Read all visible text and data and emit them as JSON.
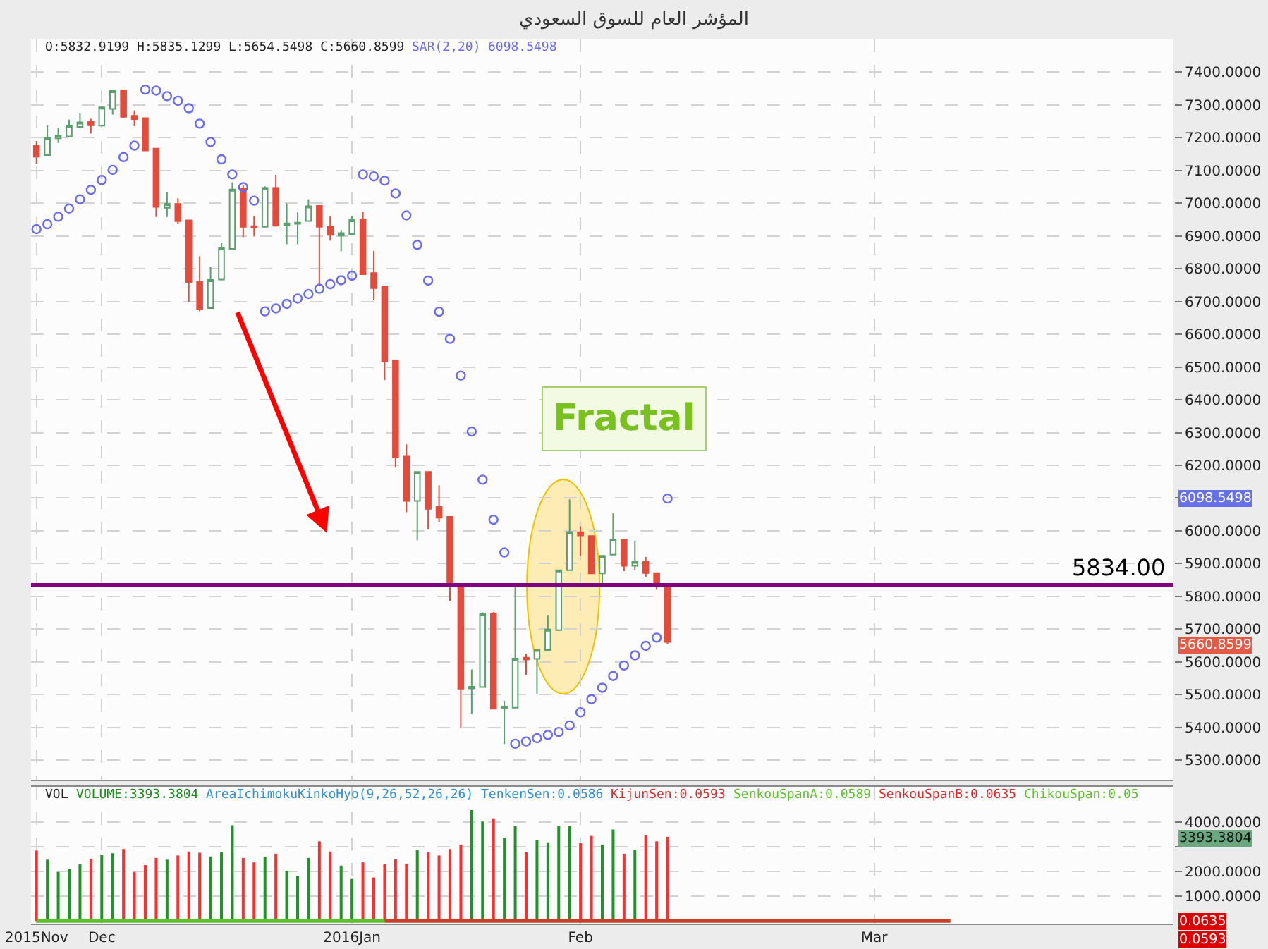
{
  "chart_data": [
    {
      "type": "candlestick",
      "title": "المؤشر العام للسوق السعودي",
      "categories": [
        null,
        null,
        null,
        null,
        null,
        null,
        null,
        null,
        null,
        null,
        null,
        null,
        null,
        null,
        null,
        null,
        null,
        null,
        null,
        null,
        null,
        null,
        null,
        null,
        null,
        null,
        null,
        null,
        null,
        null,
        null,
        null,
        null,
        null,
        null,
        null,
        null,
        null,
        null,
        null,
        null,
        null,
        null,
        null,
        null,
        null,
        null,
        null,
        null,
        null,
        null,
        null,
        null,
        null,
        null,
        null,
        null,
        null,
        null,
        null,
        null,
        null,
        null,
        null,
        null,
        null,
        null,
        null,
        null,
        null,
        null,
        null,
        null,
        null,
        null,
        null,
        null,
        null,
        null,
        null,
        null,
        null,
        null,
        null,
        null,
        null,
        null,
        null,
        null,
        null,
        null,
        null,
        null,
        null,
        null,
        null,
        null,
        null,
        null,
        null,
        null,
        null,
        null,
        null,
        null
      ],
      "ohlc": [
        [
          7175,
          7190,
          7121,
          7142
        ],
        [
          7147,
          7238,
          7145,
          7200
        ],
        [
          7198,
          7230,
          7184,
          7207
        ],
        [
          7204,
          7255,
          7202,
          7237
        ],
        [
          7233,
          7276,
          7231,
          7247
        ],
        [
          7248,
          7258,
          7213,
          7238
        ],
        [
          7237,
          7295,
          7235,
          7293
        ],
        [
          7288,
          7345,
          7271,
          7343
        ],
        [
          7344,
          7346,
          7261,
          7264
        ],
        [
          7267,
          7283,
          7235,
          7257
        ],
        [
          7260,
          7262,
          7159,
          7161
        ],
        [
          7167,
          7169,
          6958,
          6989
        ],
        [
          6986,
          7035,
          6958,
          6998
        ],
        [
          6998,
          7015,
          6938,
          6945
        ],
        [
          6948,
          6950,
          6699,
          6759
        ],
        [
          6760,
          6838,
          6670,
          6677
        ],
        [
          6680,
          6806,
          6678,
          6766
        ],
        [
          6767,
          6878,
          6765,
          6863
        ],
        [
          6861,
          7064,
          6859,
          7042
        ],
        [
          7044,
          7054,
          6896,
          6928
        ],
        [
          6930,
          6961,
          6899,
          6926
        ],
        [
          6928,
          7052,
          6926,
          7047
        ],
        [
          7047,
          7087,
          6929,
          6931
        ],
        [
          6932,
          6999,
          6875,
          6939
        ],
        [
          6937,
          6972,
          6875,
          6941
        ],
        [
          6946,
          7012,
          6944,
          6991
        ],
        [
          6992,
          6994,
          6749,
          6928
        ],
        [
          6929,
          6961,
          6886,
          6903
        ],
        [
          6901,
          6918,
          6853,
          6909
        ],
        [
          6906,
          6962,
          6904,
          6949
        ],
        [
          6951,
          6975,
          6781,
          6783
        ],
        [
          6787,
          6855,
          6706,
          6741
        ],
        [
          6746,
          6748,
          6460,
          6517
        ],
        [
          6520,
          6522,
          6193,
          6224
        ],
        [
          6227,
          6264,
          6057,
          6091
        ],
        [
          6091,
          6182,
          5971,
          6180
        ],
        [
          6180,
          6182,
          6004,
          6067
        ],
        [
          6073,
          6139,
          6028,
          6040
        ],
        [
          6043,
          6045,
          5786,
          5837
        ],
        [
          5835,
          5837,
          5398,
          5518
        ],
        [
          5519,
          5577,
          5441,
          5524
        ],
        [
          5523,
          5751,
          5521,
          5746
        ],
        [
          5748,
          5752,
          5455,
          5457
        ],
        [
          5459,
          5481,
          5349,
          5463
        ],
        [
          5460,
          5829,
          5458,
          5610
        ],
        [
          5613,
          5624,
          5560,
          5607
        ],
        [
          5609,
          5639,
          5503,
          5637
        ],
        [
          5636,
          5743,
          5634,
          5699
        ],
        [
          5697,
          5882,
          5695,
          5880
        ],
        [
          5880,
          6096,
          5878,
          5996
        ],
        [
          5996,
          6014,
          5924,
          5986
        ],
        [
          5984,
          5986,
          5868,
          5870
        ],
        [
          5870,
          5926,
          5834,
          5924
        ],
        [
          5927,
          6053,
          5925,
          5974
        ],
        [
          5974,
          5976,
          5877,
          5893
        ],
        [
          5893,
          5970,
          5881,
          5906
        ],
        [
          5906,
          5920,
          5860,
          5871
        ],
        [
          5871,
          5873,
          5820,
          5834
        ],
        [
          5832.9199,
          5835.1299,
          5654.5498,
          5660.8599
        ],
        null,
        null,
        null,
        null,
        null,
        null,
        null,
        null,
        null,
        null,
        null,
        null,
        null,
        null,
        null,
        null,
        null,
        null,
        null,
        null,
        null,
        null,
        null,
        null,
        null,
        null,
        null,
        null,
        null,
        null,
        null,
        null,
        null,
        null,
        null,
        null,
        null,
        null,
        null,
        null,
        null,
        null,
        null,
        null,
        null,
        null
      ],
      "colors": [
        "#e24c3c",
        "#5b9f6f",
        "#5b9f6f",
        "#5b9f6f",
        "#5b9f6f",
        "#e24c3c",
        "#5b9f6f",
        "#5b9f6f",
        "#e24c3c",
        "#e24c3c",
        "#e24c3c",
        "#e24c3c",
        "#5b9f6f",
        "#e24c3c",
        "#e24c3c",
        "#e24c3c",
        "#5b9f6f",
        "#5b9f6f",
        "#5b9f6f",
        "#e24c3c",
        "#e24c3c",
        "#5b9f6f",
        "#e24c3c",
        "#5b9f6f",
        "#5b9f6f",
        "#5b9f6f",
        "#e24c3c",
        "#e24c3c",
        "#5b9f6f",
        "#5b9f6f",
        "#e24c3c",
        "#e24c3c",
        "#e24c3c",
        "#e24c3c",
        "#e24c3c",
        "#5b9f6f",
        "#e24c3c",
        "#e24c3c",
        "#e24c3c",
        "#e24c3c",
        "#5b9f6f",
        "#5b9f6f",
        "#e24c3c",
        "#5b9f6f",
        "#5b9f6f",
        "#e24c3c",
        "#5b9f6f",
        "#5b9f6f",
        "#5b9f6f",
        "#5b9f6f",
        "#e24c3c",
        "#e24c3c",
        "#5b9f6f",
        "#5b9f6f",
        "#e24c3c",
        "#5b9f6f",
        "#e24c3c",
        "#e24c3c",
        "#e24c3c",
        null,
        null,
        null,
        null,
        null,
        null,
        null,
        null,
        null,
        null,
        null,
        null,
        null,
        null,
        null,
        null,
        null,
        null,
        null,
        null,
        null,
        null,
        null,
        null,
        null,
        null,
        null,
        null,
        null,
        null,
        null,
        null,
        null,
        null,
        null,
        null,
        null,
        null,
        null,
        null,
        null,
        null,
        null,
        null,
        null,
        null
      ],
      "series": [
        {
          "name": "SAR(2,20)",
          "type": "scatter",
          "color": "#6a6aee",
          "marker": "circle",
          "values": [
            6921,
            6936,
            6959,
            6984,
            7012,
            7041,
            7071,
            7102,
            7141,
            7176,
            7347,
            7344,
            7327,
            7313,
            7290,
            7243,
            7187,
            7134,
            7088,
            7049,
            7008,
            6670,
            6679,
            6693,
            6709,
            6723,
            6739,
            6753,
            6765,
            6779,
            7088,
            7082,
            7069,
            7030,
            6963,
            6873,
            6764,
            6669,
            6586,
            6474,
            6303,
            6156,
            6034,
            5934,
            5350,
            5357,
            5367,
            5377,
            5386,
            5406,
            5446,
            5486,
            5521,
            5557,
            5589,
            5620,
            5649,
            5674,
            6098.5498,
            null,
            null,
            null,
            null,
            null,
            null,
            null,
            null,
            null,
            null,
            null,
            null,
            null,
            null,
            null,
            null,
            null,
            null,
            null,
            null,
            null,
            null,
            null,
            null,
            null,
            null,
            null,
            null,
            null,
            null,
            null,
            null,
            null,
            null,
            null,
            null,
            null,
            null,
            null,
            null,
            null,
            null,
            null,
            null,
            null,
            null
          ]
        }
      ],
      "ylim": [
        5240,
        7500
      ],
      "yticks": [
        {
          "value": 5300,
          "label": "5300.0000"
        },
        {
          "value": 5400,
          "label": "5400.0000"
        },
        {
          "value": 5500,
          "label": "5500.0000"
        },
        {
          "value": 5600,
          "label": "5600.0000"
        },
        {
          "value": 5700,
          "label": "5700.0000"
        },
        {
          "value": 5800,
          "label": "5800.0000"
        },
        {
          "value": 5900,
          "label": "5900.0000"
        },
        {
          "value": 6000,
          "label": "6000.0000"
        },
        {
          "value": 6100,
          "label": null
        },
        {
          "value": 6200,
          "label": "6200.0000"
        },
        {
          "value": 6300,
          "label": "6300.0000"
        },
        {
          "value": 6400,
          "label": "6400.0000"
        },
        {
          "value": 6500,
          "label": "6500.0000"
        },
        {
          "value": 6600,
          "label": "6600.0000"
        },
        {
          "value": 6700,
          "label": "6700.0000"
        },
        {
          "value": 6800,
          "label": "6800.0000"
        },
        {
          "value": 6900,
          "label": "6900.0000"
        },
        {
          "value": 7000,
          "label": "7000.0000"
        },
        {
          "value": 7100,
          "label": "7100.0000"
        },
        {
          "value": 7200,
          "label": "7200.0000"
        },
        {
          "value": 7300,
          "label": "7300.0000"
        },
        {
          "value": 7400,
          "label": "7400.0000"
        }
      ],
      "ref_lines": [
        {
          "axis": "y",
          "value": 5834,
          "label": "5834.00",
          "color": "#800080"
        }
      ],
      "annotations": [
        "O:5832.9199 H:5835.1299 L:5654.5498 C:5660.8599",
        "6098.5498",
        "Fractal",
        "6098.5498",
        "5660.8599"
      ],
      "grid": true,
      "tick_labels": "y"
    },
    {
      "type": "bar",
      "categories": [
        "2015Nov",
        null,
        null,
        null,
        null,
        null,
        "Dec",
        null,
        null,
        null,
        null,
        null,
        null,
        null,
        null,
        null,
        null,
        null,
        null,
        null,
        null,
        null,
        null,
        null,
        null,
        null,
        null,
        null,
        null,
        "2016Jan",
        null,
        null,
        null,
        null,
        null,
        null,
        null,
        null,
        null,
        null,
        null,
        null,
        null,
        null,
        null,
        null,
        null,
        null,
        null,
        null,
        "Feb",
        null,
        null,
        null,
        null,
        null,
        null,
        null,
        null,
        null,
        null,
        null,
        null,
        null,
        null,
        null,
        null,
        null,
        null,
        null,
        null,
        null,
        null,
        null,
        null,
        null,
        null,
        "Mar",
        null,
        null,
        null,
        null,
        null,
        null,
        null,
        null,
        null,
        null,
        null,
        null,
        null,
        null,
        null,
        null,
        null,
        null,
        null,
        null,
        null,
        null,
        null,
        null,
        null,
        null,
        null
      ],
      "series": [
        {
          "colors": [
            "#ff2d2d",
            "#22922a",
            "#22922a",
            "#22922a",
            "#22922a",
            "#ff2d2d",
            "#22922a",
            "#22922a",
            "#ff2d2d",
            "#ff2d2d",
            "#ff2d2d",
            "#ff2d2d",
            "#22922a",
            "#ff2d2d",
            "#ff2d2d",
            "#ff2d2d",
            "#22922a",
            "#22922a",
            "#22922a",
            "#ff2d2d",
            "#ff2d2d",
            "#22922a",
            "#ff2d2d",
            "#22922a",
            "#22922a",
            "#22922a",
            "#ff2d2d",
            "#ff2d2d",
            "#22922a",
            "#22922a",
            "#ff2d2d",
            "#ff2d2d",
            "#ff2d2d",
            "#ff2d2d",
            "#ff2d2d",
            "#22922a",
            "#ff2d2d",
            "#ff2d2d",
            "#ff2d2d",
            "#ff2d2d",
            "#22922a",
            "#22922a",
            "#ff2d2d",
            "#22922a",
            "#22922a",
            "#ff2d2d",
            "#22922a",
            "#22922a",
            "#22922a",
            "#22922a",
            "#ff2d2d",
            "#ff2d2d",
            "#22922a",
            "#22922a",
            "#ff2d2d",
            "#22922a",
            "#ff2d2d",
            "#ff2d2d",
            "#ff2d2d",
            null,
            null,
            null,
            null,
            null,
            null,
            null,
            null,
            null,
            null,
            null,
            null,
            null,
            null,
            null,
            null,
            null,
            null,
            null,
            null,
            null,
            null,
            null,
            null,
            null,
            null,
            null,
            null,
            null,
            null,
            null,
            null,
            null,
            null,
            null,
            null,
            null,
            null,
            null,
            null,
            null,
            null,
            null,
            null,
            null,
            null
          ],
          "values": [
            2840,
            2470,
            1970,
            2100,
            2280,
            2510,
            2650,
            2730,
            2900,
            1970,
            2250,
            2540,
            2470,
            2640,
            2800,
            2750,
            2600,
            2770,
            3860,
            2540,
            2360,
            2580,
            2710,
            2020,
            1820,
            2540,
            3210,
            2800,
            2230,
            1690,
            2360,
            1750,
            2280,
            2490,
            2300,
            2860,
            2770,
            2640,
            2900,
            3080,
            4470,
            4010,
            4140,
            3360,
            3820,
            2770,
            3250,
            3170,
            3820,
            3820,
            3140,
            3430,
            3080,
            3690,
            2710,
            2860,
            3470,
            3210,
            3393.3804,
            null,
            null,
            null,
            null,
            null,
            null,
            null,
            null,
            null,
            null,
            null,
            null,
            null,
            null,
            null,
            null,
            null,
            null,
            null,
            null,
            null,
            null,
            null,
            null,
            null,
            null,
            null,
            null,
            null,
            null,
            null,
            null,
            null,
            null,
            null,
            null,
            null,
            null,
            null,
            null,
            null,
            null,
            null,
            null,
            null,
            null
          ]
        },
        {
          "type": "line",
          "color": "#5cc22c",
          "values": [
            0,
            0,
            0,
            0,
            0,
            0,
            0,
            0,
            0,
            0,
            0,
            0,
            0,
            0,
            0,
            0,
            0,
            0,
            0,
            0,
            0,
            0,
            0,
            0,
            0,
            0,
            0,
            0,
            0,
            0,
            0,
            0,
            0,
            null,
            null,
            null,
            null,
            null,
            null,
            null,
            null,
            null,
            null,
            null,
            null,
            null,
            null,
            null,
            null,
            null,
            null,
            null,
            null,
            null,
            null,
            null,
            null,
            null,
            null,
            null,
            null,
            null,
            null,
            null,
            null,
            null,
            null,
            null,
            null,
            null,
            null,
            null,
            null,
            null,
            null,
            null,
            null,
            null,
            null,
            null,
            null,
            null,
            null,
            null,
            null,
            null,
            null,
            null,
            null,
            null,
            null,
            null,
            null,
            null,
            null,
            null,
            null,
            null,
            null,
            null,
            null,
            null,
            null,
            null,
            null
          ]
        },
        {
          "type": "line",
          "color": "#c8402a",
          "values": [
            null,
            null,
            null,
            null,
            null,
            null,
            null,
            null,
            null,
            null,
            null,
            null,
            null,
            null,
            null,
            null,
            null,
            null,
            null,
            null,
            null,
            null,
            null,
            null,
            null,
            null,
            null,
            null,
            null,
            null,
            null,
            null,
            0,
            0,
            0,
            0,
            0,
            0,
            0,
            0,
            0,
            0,
            0,
            0,
            0,
            0,
            0,
            0,
            0,
            0,
            0,
            0,
            0,
            0,
            0,
            0,
            0,
            0,
            0,
            0,
            0,
            0,
            0,
            0,
            0,
            0,
            0,
            0,
            0,
            0,
            0,
            0,
            0,
            0,
            0,
            0,
            0,
            0,
            0,
            0,
            0,
            0,
            0,
            0,
            0,
            null,
            null,
            null,
            null,
            null,
            null,
            null,
            null,
            null,
            null,
            null,
            null,
            null,
            null,
            null,
            null,
            null,
            null,
            null,
            null
          ]
        }
      ],
      "ylim": [
        -110,
        5410
      ],
      "yticks": [
        {
          "value": 1000,
          "label": "1000.0000"
        },
        {
          "value": 2000,
          "label": "2000.0000"
        },
        {
          "value": 3000,
          "label": null
        },
        {
          "value": 4000,
          "label": "4000.0000"
        }
      ],
      "annotations": [
        "VOL",
        "VOLUME:3393.3804",
        "AreaIchimokuKinkoHyo(9,26,52,26,26)",
        "TenkenSen:0.0586",
        "KijunSen:0.0593",
        "SenkouSpanA:0.0589",
        "SenkouSpanB:0.0635",
        "ChikouSpan:0.05",
        "3393.3804",
        "0.0635",
        "0.0593"
      ],
      "grid": true
    }
  ]
}
